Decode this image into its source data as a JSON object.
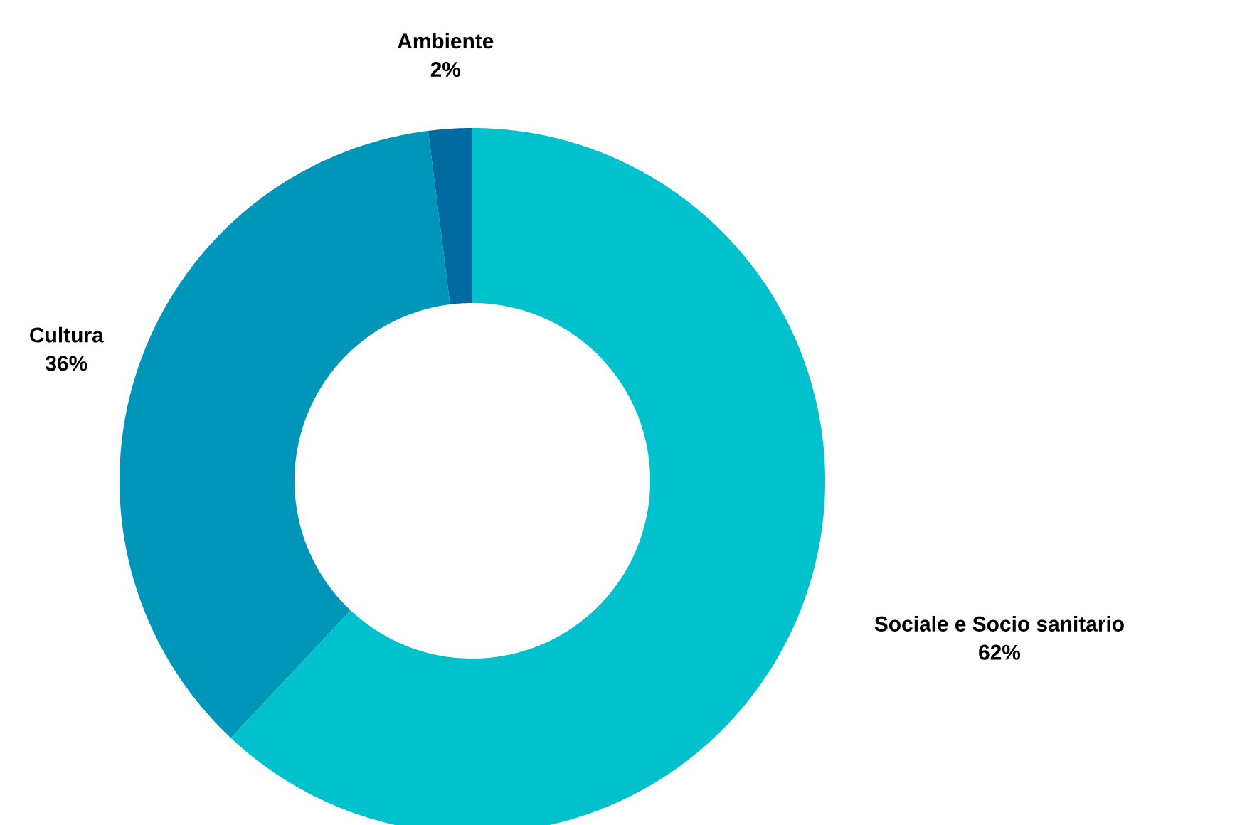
{
  "chart_data": {
    "type": "donut",
    "categories": [
      "Sociale e Socio sanitario",
      "Cultura",
      "Ambiente"
    ],
    "values": [
      62,
      36,
      2
    ],
    "colors": [
      "#00c1cc",
      "#0096b9",
      "#006aa1"
    ],
    "value_labels": [
      "62%",
      "36%",
      "2%"
    ]
  }
}
